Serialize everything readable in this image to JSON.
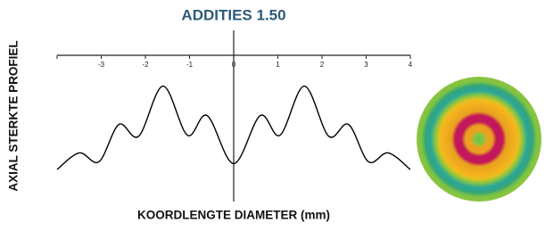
{
  "chart_data": {
    "type": "line",
    "title": "ADDITIES 1.50",
    "x_label": "KOORDLENGTE DIAMETER (mm)",
    "y_label": "AXIAL STERKTE PROFIEL",
    "x": [
      -4,
      -3.5,
      -3.05,
      -2.6,
      -2.15,
      -1.6,
      -1.05,
      -0.6,
      0,
      0.6,
      1.05,
      1.6,
      2.15,
      2.6,
      3.05,
      3.5,
      4
    ],
    "values": [
      9,
      26,
      17,
      55,
      43,
      94,
      44,
      64,
      15,
      64,
      44,
      94,
      43,
      55,
      17,
      26,
      9
    ],
    "color": "#000000",
    "xlim": [
      -4,
      4
    ],
    "xticks": [
      -3,
      -2,
      -1,
      0,
      1,
      2,
      3,
      4
    ],
    "ylim": [
      0,
      100
    ]
  }
}
